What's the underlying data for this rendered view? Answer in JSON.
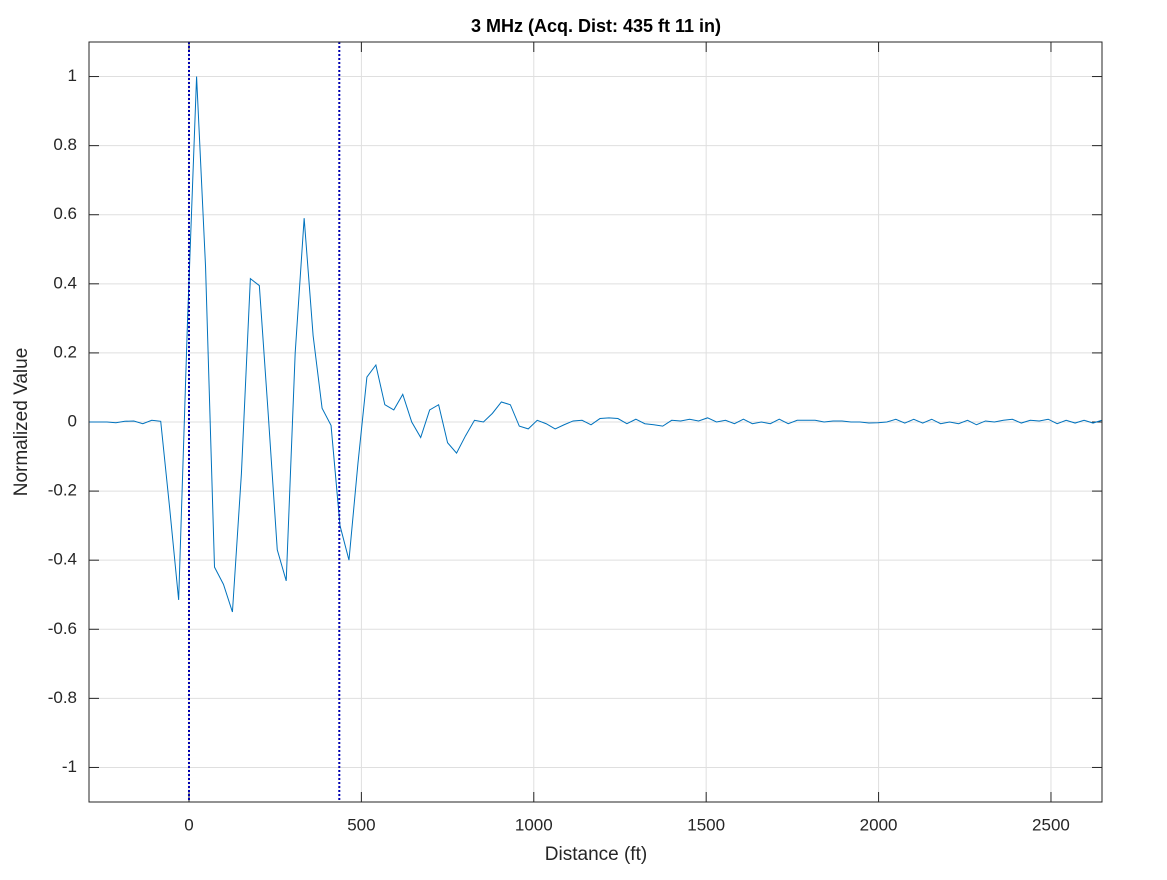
{
  "chart_data": {
    "type": "line",
    "title": "3 MHz (Acq. Dist: 435 ft 11 in)",
    "xlabel": "Distance (ft)",
    "ylabel": "Normalized Value",
    "x": [
      -290,
      -264,
      -238,
      -212,
      -186,
      -160,
      -134,
      -108,
      -82,
      -56,
      -30,
      -4,
      22,
      48,
      74,
      100,
      126,
      152,
      178,
      204,
      230,
      256,
      282,
      308,
      334,
      360,
      386,
      412,
      438,
      464,
      490,
      516,
      542,
      568,
      594,
      620,
      646,
      672,
      698,
      724,
      750,
      776,
      802,
      828,
      854,
      880,
      906,
      932,
      958,
      984,
      1010,
      1036,
      1062,
      1088,
      1114,
      1140,
      1166,
      1192,
      1218,
      1244,
      1270,
      1296,
      1322,
      1348,
      1374,
      1400,
      1426,
      1452,
      1478,
      1504,
      1530,
      1556,
      1582,
      1608,
      1634,
      1660,
      1686,
      1712,
      1738,
      1764,
      1790,
      1816,
      1842,
      1868,
      1894,
      1920,
      1946,
      1972,
      1998,
      2024,
      2050,
      2076,
      2102,
      2128,
      2154,
      2180,
      2206,
      2232,
      2258,
      2284,
      2310,
      2336,
      2362,
      2388,
      2414,
      2440,
      2466,
      2492,
      2518,
      2544,
      2570,
      2596,
      2622,
      2648
    ],
    "series": [
      {
        "color": "#0072bd",
        "values": [
          0,
          0,
          0,
          -0.002,
          0.002,
          0.003,
          -0.005,
          0.005,
          0.002,
          -0.25,
          -0.515,
          0.3,
          1.0,
          0.45,
          -0.42,
          -0.47,
          -0.55,
          -0.15,
          0.415,
          0.395,
          0.02,
          -0.37,
          -0.46,
          0.2,
          0.59,
          0.25,
          0.04,
          -0.01,
          -0.3,
          -0.4,
          -0.12,
          0.13,
          0.165,
          0.05,
          0.035,
          0.08,
          0.0,
          -0.045,
          0.035,
          0.05,
          -0.06,
          -0.09,
          -0.04,
          0.005,
          0.0,
          0.025,
          0.058,
          0.05,
          -0.012,
          -0.02,
          0.005,
          -0.005,
          -0.02,
          -0.008,
          0.003,
          0.005,
          -0.008,
          0.01,
          0.012,
          0.01,
          -0.005,
          0.008,
          -0.005,
          -0.008,
          -0.012,
          0.005,
          0.003,
          0.008,
          0.003,
          0.012,
          0.0,
          0.005,
          -0.005,
          0.008,
          -0.005,
          0.0,
          -0.005,
          0.008,
          -0.005,
          0.005,
          0.005,
          0.005,
          0.0,
          0.003,
          0.003,
          0.0,
          0.0,
          -0.003,
          -0.002,
          0.0,
          0.008,
          -0.003,
          0.008,
          -0.003,
          0.008,
          -0.005,
          0.0,
          -0.005,
          0.005,
          -0.008,
          0.003,
          0.0,
          0.005,
          0.008,
          -0.003,
          0.005,
          0.003,
          0.008,
          -0.005,
          0.005,
          -0.003,
          0.005,
          -0.003,
          0.005
        ]
      }
    ],
    "vlines": {
      "color": "#0000b0",
      "values": [
        0,
        435.92
      ]
    },
    "xlim": [
      -290,
      2648
    ],
    "ylim": [
      -1.1,
      1.1
    ],
    "xticks": [
      0,
      500,
      1000,
      1500,
      2000,
      2500
    ],
    "yticks": [
      -1,
      -0.8,
      -0.6,
      -0.4,
      -0.2,
      0,
      0.2,
      0.4,
      0.6,
      0.8,
      1
    ],
    "grid": true
  }
}
